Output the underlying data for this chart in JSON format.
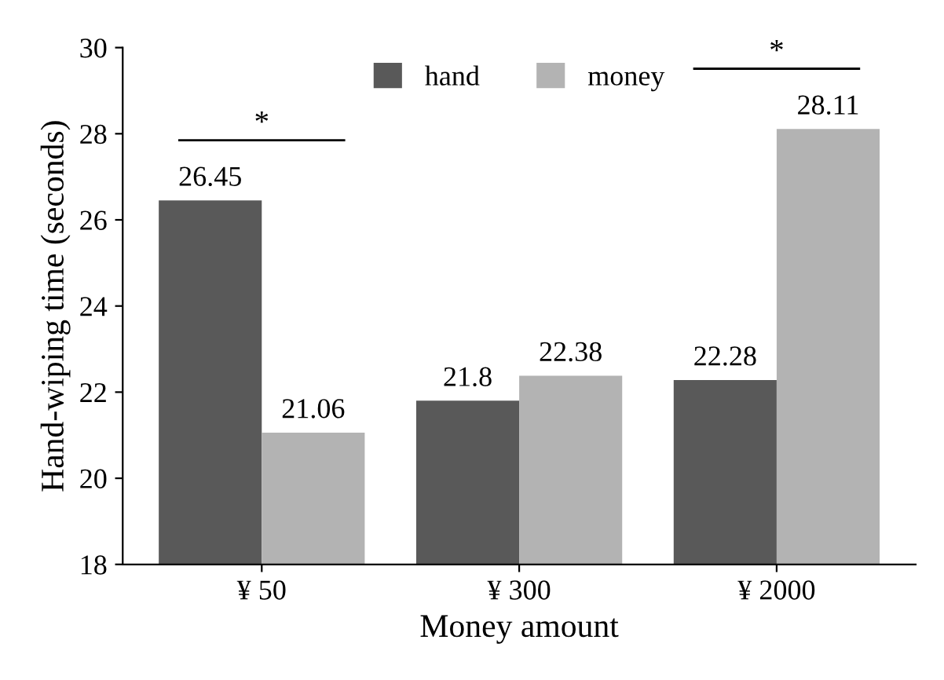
{
  "chart_data": {
    "type": "bar",
    "xlabel": "Money amount",
    "ylabel": "Hand-wiping time (seconds)",
    "categories": [
      "¥ 50",
      "¥ 300",
      "¥ 2000"
    ],
    "series": [
      {
        "name": "hand",
        "color": "#595959",
        "values": [
          26.45,
          21.8,
          22.28
        ]
      },
      {
        "name": "money",
        "color": "#b3b3b3",
        "values": [
          21.06,
          22.38,
          28.11
        ]
      }
    ],
    "ylim": [
      18,
      30
    ],
    "yticks": [
      18,
      20,
      22,
      24,
      26,
      28,
      30
    ],
    "grid": false,
    "legend": "top",
    "data_labels": true,
    "annotations": [
      "*",
      "*"
    ]
  }
}
